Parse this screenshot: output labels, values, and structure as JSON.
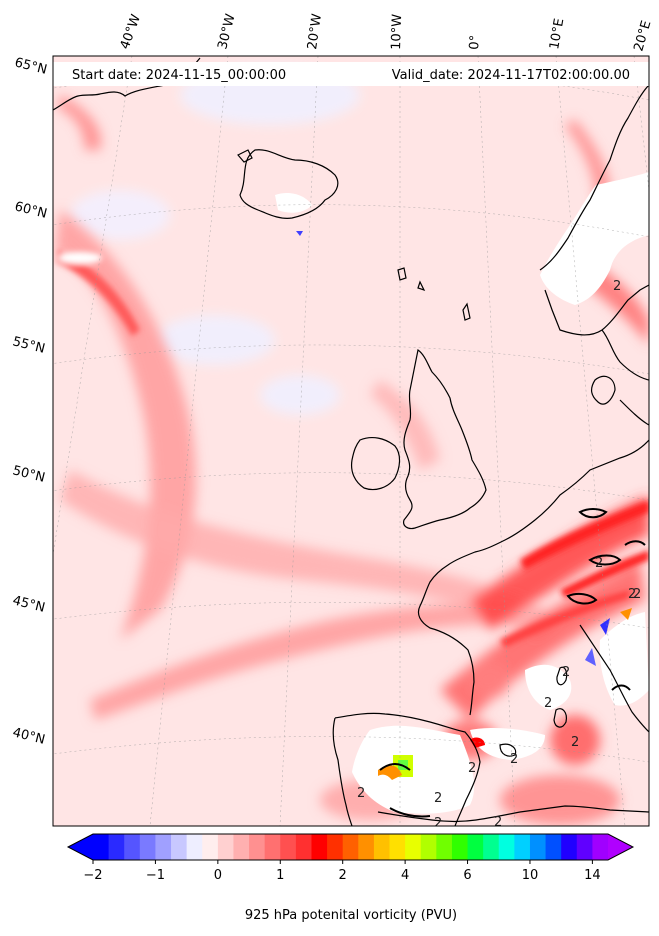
{
  "header": {
    "start_date": "Start date: 2024-11-15_00:00:00",
    "valid_date": "Valid_date: 2024-11-17T02:00:00.00"
  },
  "longitudes": [
    "40°W",
    "30°W",
    "20°W",
    "10°W",
    "0°",
    "10°E",
    "20°E"
  ],
  "latitudes": [
    "65°N",
    "60°N",
    "55°N",
    "50°N",
    "45°N",
    "40°N"
  ],
  "contour_labels": [
    "2",
    "2",
    "2",
    "2",
    "2",
    "2",
    "2",
    "2",
    "2",
    "2",
    "2",
    "2",
    "2"
  ],
  "colorbar": {
    "ticks": [
      "−2",
      "−1",
      "0",
      "1",
      "2",
      "4",
      "6",
      "10",
      "14"
    ],
    "label": "925 hPa potenital vorticity (PVU)",
    "colors": [
      "#0000ff",
      "#2a2aff",
      "#5555ff",
      "#7a7aff",
      "#a0a0ff",
      "#c8c8ff",
      "#eeeeff",
      "#ffeeee",
      "#ffd0d0",
      "#ffb0b0",
      "#ff9090",
      "#ff7070",
      "#ff5050",
      "#ff3030",
      "#ff0000",
      "#ff3000",
      "#ff6000",
      "#ff9000",
      "#ffc000",
      "#ffe000",
      "#e8ff00",
      "#b0ff00",
      "#70ff00",
      "#30ff00",
      "#00ff40",
      "#00ff90",
      "#00ffe0",
      "#00d0ff",
      "#0090ff",
      "#0050ff",
      "#2000ff",
      "#6000ff",
      "#a000ff"
    ],
    "extend_low_color": "#0000ff",
    "extend_high_color": "#b000ff"
  },
  "colors": {
    "background_field": "#ffe8e8",
    "land_mask": "#ffffff",
    "coast": "#000000"
  }
}
